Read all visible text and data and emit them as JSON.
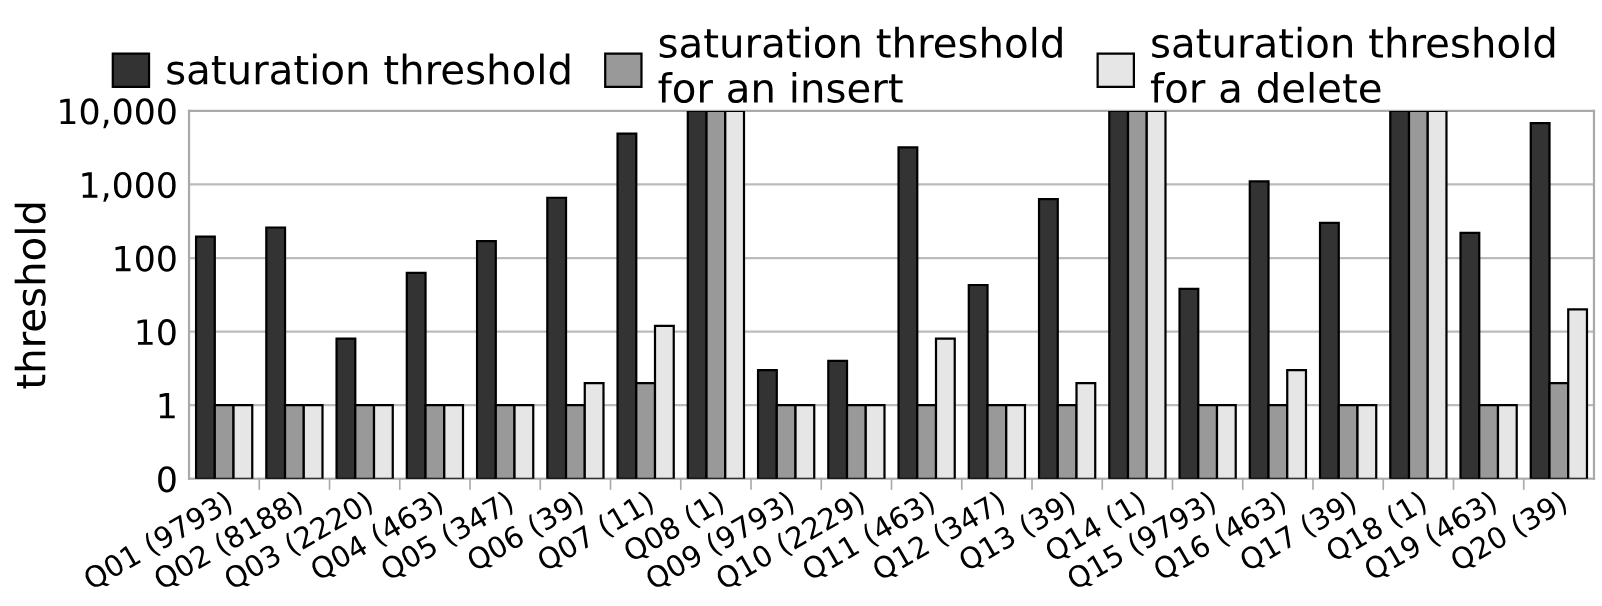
{
  "chart_data": {
    "type": "bar",
    "ylabel": "threshold",
    "log": true,
    "categories": [
      "Q01 (9793)",
      "Q02 (8188)",
      "Q03 (2220)",
      "Q04 (463)",
      "Q05 (347)",
      "Q06 (39)",
      "Q07 (11)",
      "Q08 (1)",
      "Q09 (9793)",
      "Q10 (2229)",
      "Q11 (463)",
      "Q12 (347)",
      "Q13 (39)",
      "Q14 (1)",
      "Q15 (9793)",
      "Q16 (463)",
      "Q17 (39)",
      "Q18 (1)",
      "Q19 (463)",
      "Q20 (39)"
    ],
    "series": [
      {
        "name": "saturation threshold",
        "color": "#333333",
        "values": [
          195,
          260,
          8,
          63,
          170,
          660,
          4900,
          10000,
          3,
          4,
          3200,
          43,
          630,
          10000,
          38,
          1100,
          300,
          10000,
          220,
          6800
        ]
      },
      {
        "name": "saturation threshold\nfor an insert",
        "color": "#999999",
        "values": [
          1,
          1,
          1,
          1,
          1,
          1,
          2,
          10000,
          1,
          1,
          1,
          1,
          1,
          10000,
          1,
          1,
          1,
          10000,
          1,
          2
        ]
      },
      {
        "name": "saturation threshold\nfor a delete",
        "color": "#e6e6e6",
        "values": [
          1,
          1,
          1,
          1,
          1,
          2,
          12,
          10000,
          1,
          1,
          8,
          1,
          2,
          10000,
          1,
          3,
          1,
          10000,
          1,
          20
        ]
      }
    ],
    "ylim": [
      0.1,
      10000
    ],
    "yticks": [
      {
        "value": 0.1,
        "label": "0"
      },
      1,
      10,
      100,
      {
        "value": 1000,
        "label": "1,000"
      },
      {
        "value": 10000,
        "label": "10,000"
      }
    ],
    "grid": "y",
    "legend": "top"
  }
}
